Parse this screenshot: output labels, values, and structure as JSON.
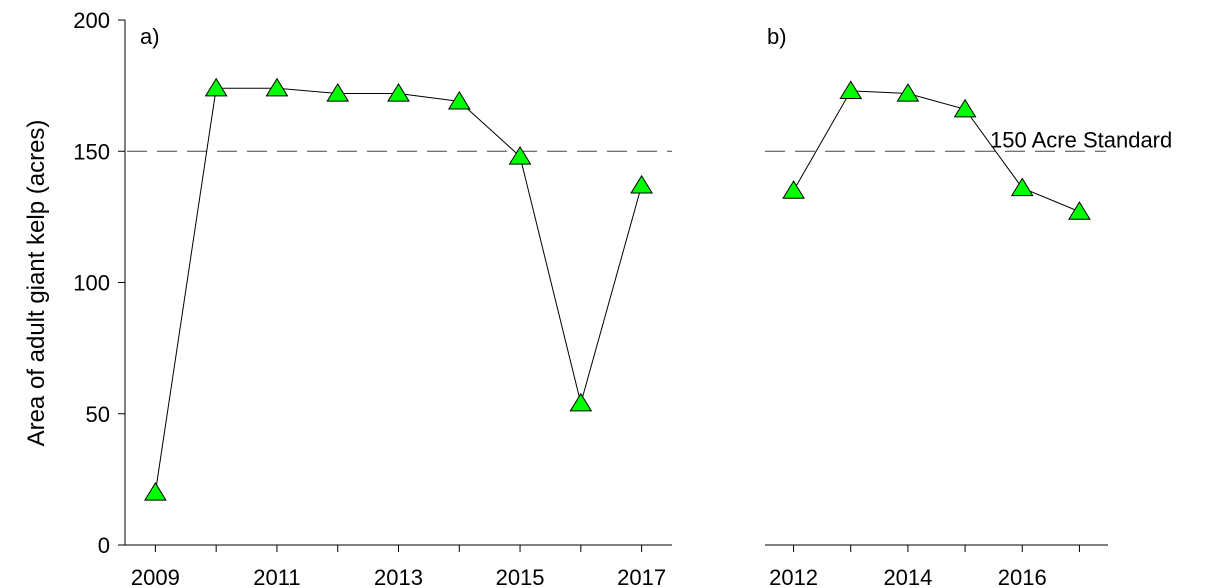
{
  "chart_data": [
    {
      "type": "line",
      "panel_label": "a)",
      "ylabel": "Area of adult giant kelp (acres)",
      "ylim": [
        0,
        200
      ],
      "yticks": [
        "0",
        "50",
        "100",
        "150",
        "200"
      ],
      "xlim": [
        2008.5,
        2017.5
      ],
      "xticks": [
        "2009",
        "2011",
        "2013",
        "2015",
        "2017"
      ],
      "grid": false,
      "reference_line": {
        "y": 150,
        "style": "dashed"
      },
      "series": [
        {
          "marker": "triangle",
          "color": "#00ff00",
          "x": [
            2009,
            2010,
            2011,
            2012,
            2013,
            2014,
            2015,
            2016,
            2017
          ],
          "y": [
            20,
            174,
            174,
            172,
            172,
            169,
            148,
            54,
            137
          ]
        }
      ]
    },
    {
      "type": "line",
      "panel_label": "b)",
      "ylim": [
        0,
        200
      ],
      "xlim": [
        2011.5,
        2017.5
      ],
      "xticks": [
        "2012",
        "2014",
        "2016"
      ],
      "grid": false,
      "reference_line": {
        "y": 150,
        "style": "dashed",
        "label": "150 Acre Standard"
      },
      "series": [
        {
          "marker": "triangle",
          "color": "#00ff00",
          "x": [
            2012,
            2013,
            2014,
            2015,
            2016,
            2017
          ],
          "y": [
            135,
            173,
            172,
            166,
            136,
            127
          ]
        }
      ]
    }
  ]
}
